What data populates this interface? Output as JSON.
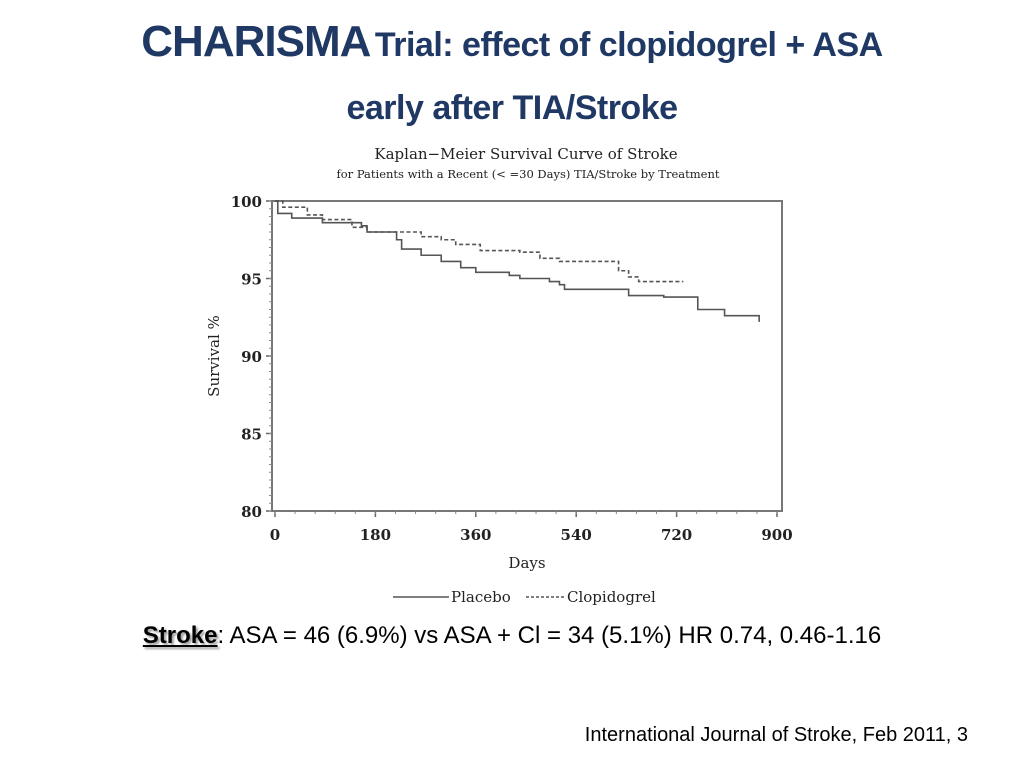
{
  "slide": {
    "title_bold": "CHARISMA",
    "title_rest": "Trial: effect of clopidogrel + ASA",
    "title_line2": "early after TIA/Stroke",
    "summary_keyword": "Stroke",
    "summary_text": ": ASA = 46 (6.9%) vs ASA + Cl = 34 (5.1%) HR 0.74, 0.46-1.16",
    "citation": "International Journal of Stroke, Feb 2011, 3",
    "colors": {
      "title": "#1f3864",
      "curve": "#555555",
      "axis": "#666666"
    }
  },
  "chart_data": {
    "type": "line",
    "title": "Kaplan−Meier Survival Curve of Stroke",
    "subtitle": "for Patients with a Recent (< =30 Days) TIA/Stroke by Treatment",
    "xlabel": "Days",
    "ylabel": "Survival %",
    "xlim": [
      0,
      900
    ],
    "ylim": [
      80,
      100
    ],
    "xticks": [
      "0",
      "180",
      "360",
      "540",
      "720",
      "900"
    ],
    "yticks": [
      "80",
      "85",
      "90",
      "95",
      "100"
    ],
    "xtick_values": [
      0,
      180,
      360,
      540,
      720,
      900
    ],
    "ytick_values": [
      80,
      85,
      90,
      95,
      100
    ],
    "grid": false,
    "legend_position": "bottom",
    "series": [
      {
        "name": "Placebo",
        "style": "solid",
        "step_points": [
          [
            0,
            100
          ],
          [
            5,
            99.2
          ],
          [
            30,
            98.9
          ],
          [
            85,
            98.6
          ],
          [
            155,
            98.4
          ],
          [
            165,
            98.0
          ],
          [
            218,
            97.5
          ],
          [
            227,
            96.9
          ],
          [
            262,
            96.5
          ],
          [
            298,
            96.1
          ],
          [
            333,
            95.7
          ],
          [
            360,
            95.4
          ],
          [
            420,
            95.2
          ],
          [
            439,
            95.0
          ],
          [
            492,
            94.8
          ],
          [
            510,
            94.6
          ],
          [
            519,
            94.3
          ],
          [
            634,
            93.9
          ],
          [
            697,
            93.8
          ],
          [
            758,
            93.0
          ],
          [
            806,
            92.6
          ],
          [
            868,
            92.2
          ]
        ]
      },
      {
        "name": "Clopidogrel",
        "style": "dashed",
        "step_points": [
          [
            0,
            100
          ],
          [
            14,
            99.6
          ],
          [
            58,
            99.1
          ],
          [
            85,
            98.8
          ],
          [
            138,
            98.3
          ],
          [
            165,
            98.0
          ],
          [
            262,
            97.7
          ],
          [
            298,
            97.5
          ],
          [
            324,
            97.2
          ],
          [
            368,
            96.8
          ],
          [
            439,
            96.7
          ],
          [
            475,
            96.3
          ],
          [
            510,
            96.1
          ],
          [
            616,
            95.5
          ],
          [
            634,
            95.1
          ],
          [
            652,
            94.8
          ],
          [
            732,
            94.8
          ]
        ]
      }
    ]
  }
}
